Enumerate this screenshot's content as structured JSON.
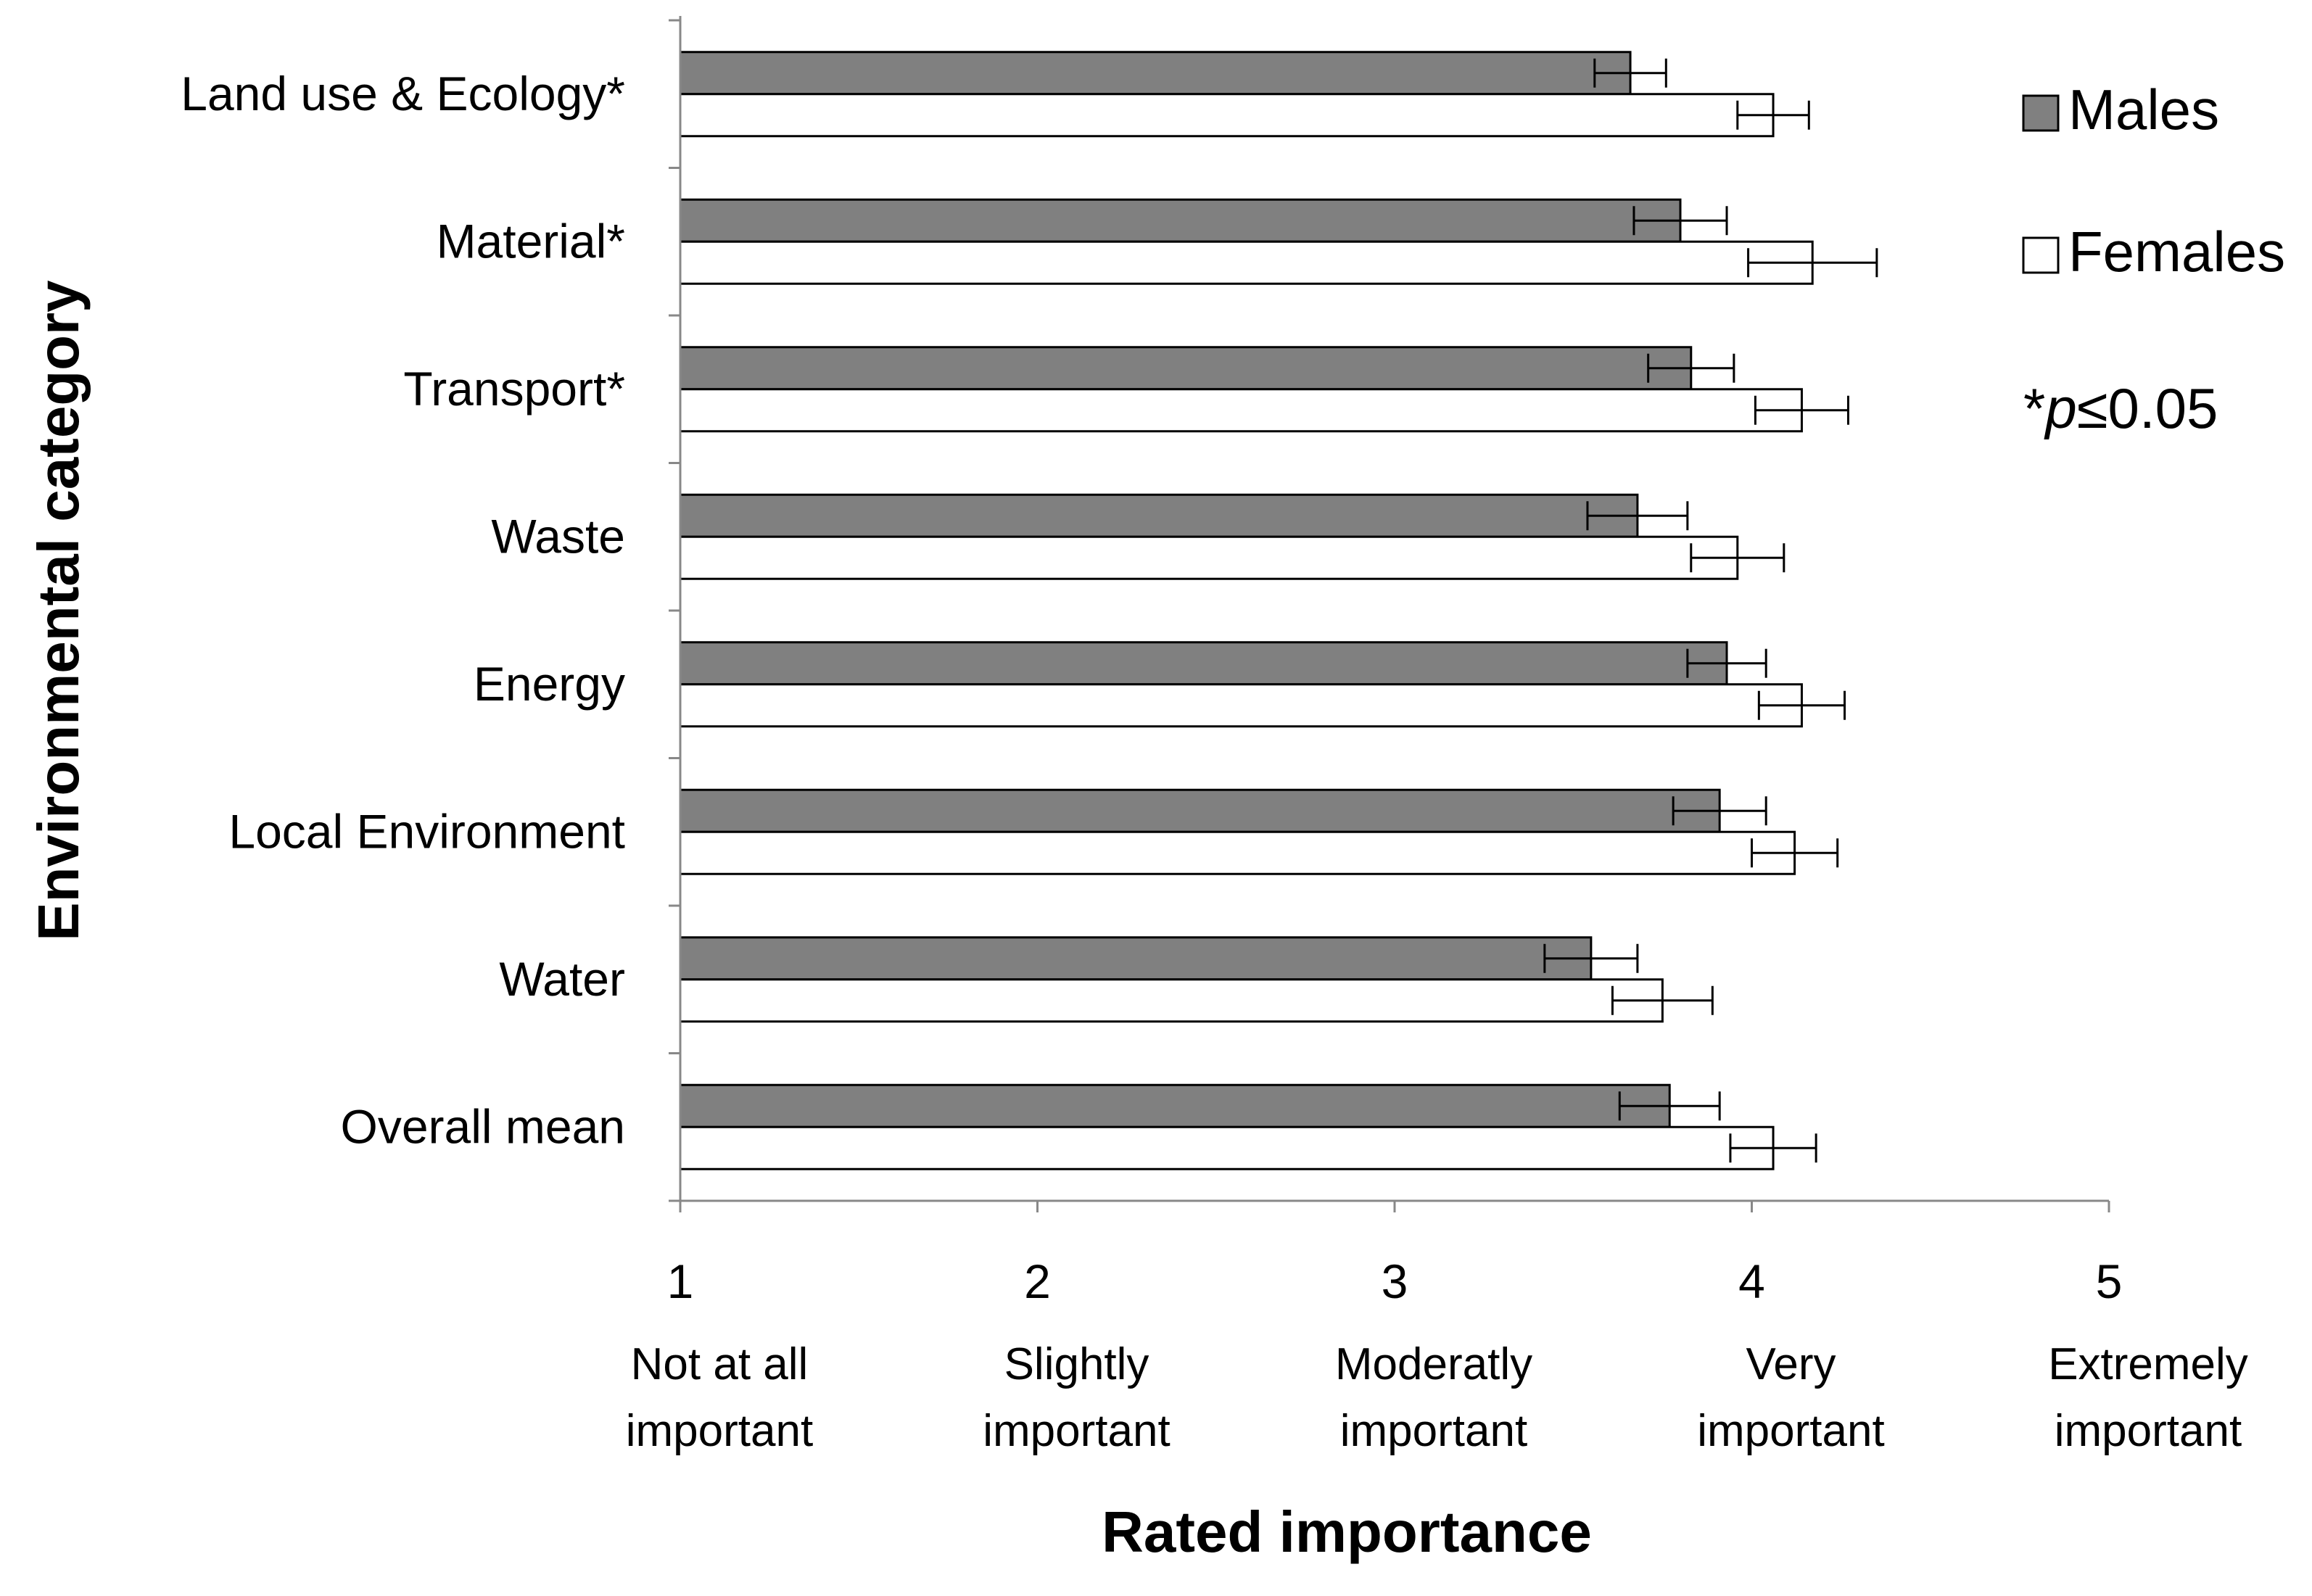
{
  "chart_data": {
    "type": "bar",
    "orientation": "horizontal",
    "title": "",
    "xlabel": "Rated importance",
    "ylabel": "Environmental category",
    "xlim": [
      1,
      5
    ],
    "xticks": [
      1,
      2,
      3,
      4,
      5
    ],
    "x_descriptors": [
      [
        "Not at all",
        "important"
      ],
      [
        "Slightly",
        "important"
      ],
      [
        "Moderatly",
        "important"
      ],
      [
        "Very",
        "important"
      ],
      [
        "Extremely",
        "important"
      ]
    ],
    "categories": [
      "Land use & Ecology*",
      "Material*",
      "Transport*",
      "Waste",
      "Energy",
      "Local Environment",
      "Water",
      "Overall mean"
    ],
    "series": [
      {
        "name": "Males",
        "color": "#808080",
        "values": [
          3.66,
          3.8,
          3.83,
          3.68,
          3.93,
          3.91,
          3.55,
          3.77
        ],
        "errors": [
          0.1,
          0.13,
          0.12,
          0.14,
          0.11,
          0.13,
          0.13,
          0.14
        ]
      },
      {
        "name": "Females",
        "color": "#ffffff",
        "values": [
          4.06,
          4.17,
          4.14,
          3.96,
          4.14,
          4.12,
          3.75,
          4.06
        ],
        "errors": [
          0.1,
          0.18,
          0.13,
          0.13,
          0.12,
          0.12,
          0.14,
          0.12
        ]
      }
    ],
    "annotation": {
      "prefix": "*",
      "italic": "p",
      "suffix": "≤0.05"
    },
    "legend_position": "right",
    "grid": false
  }
}
